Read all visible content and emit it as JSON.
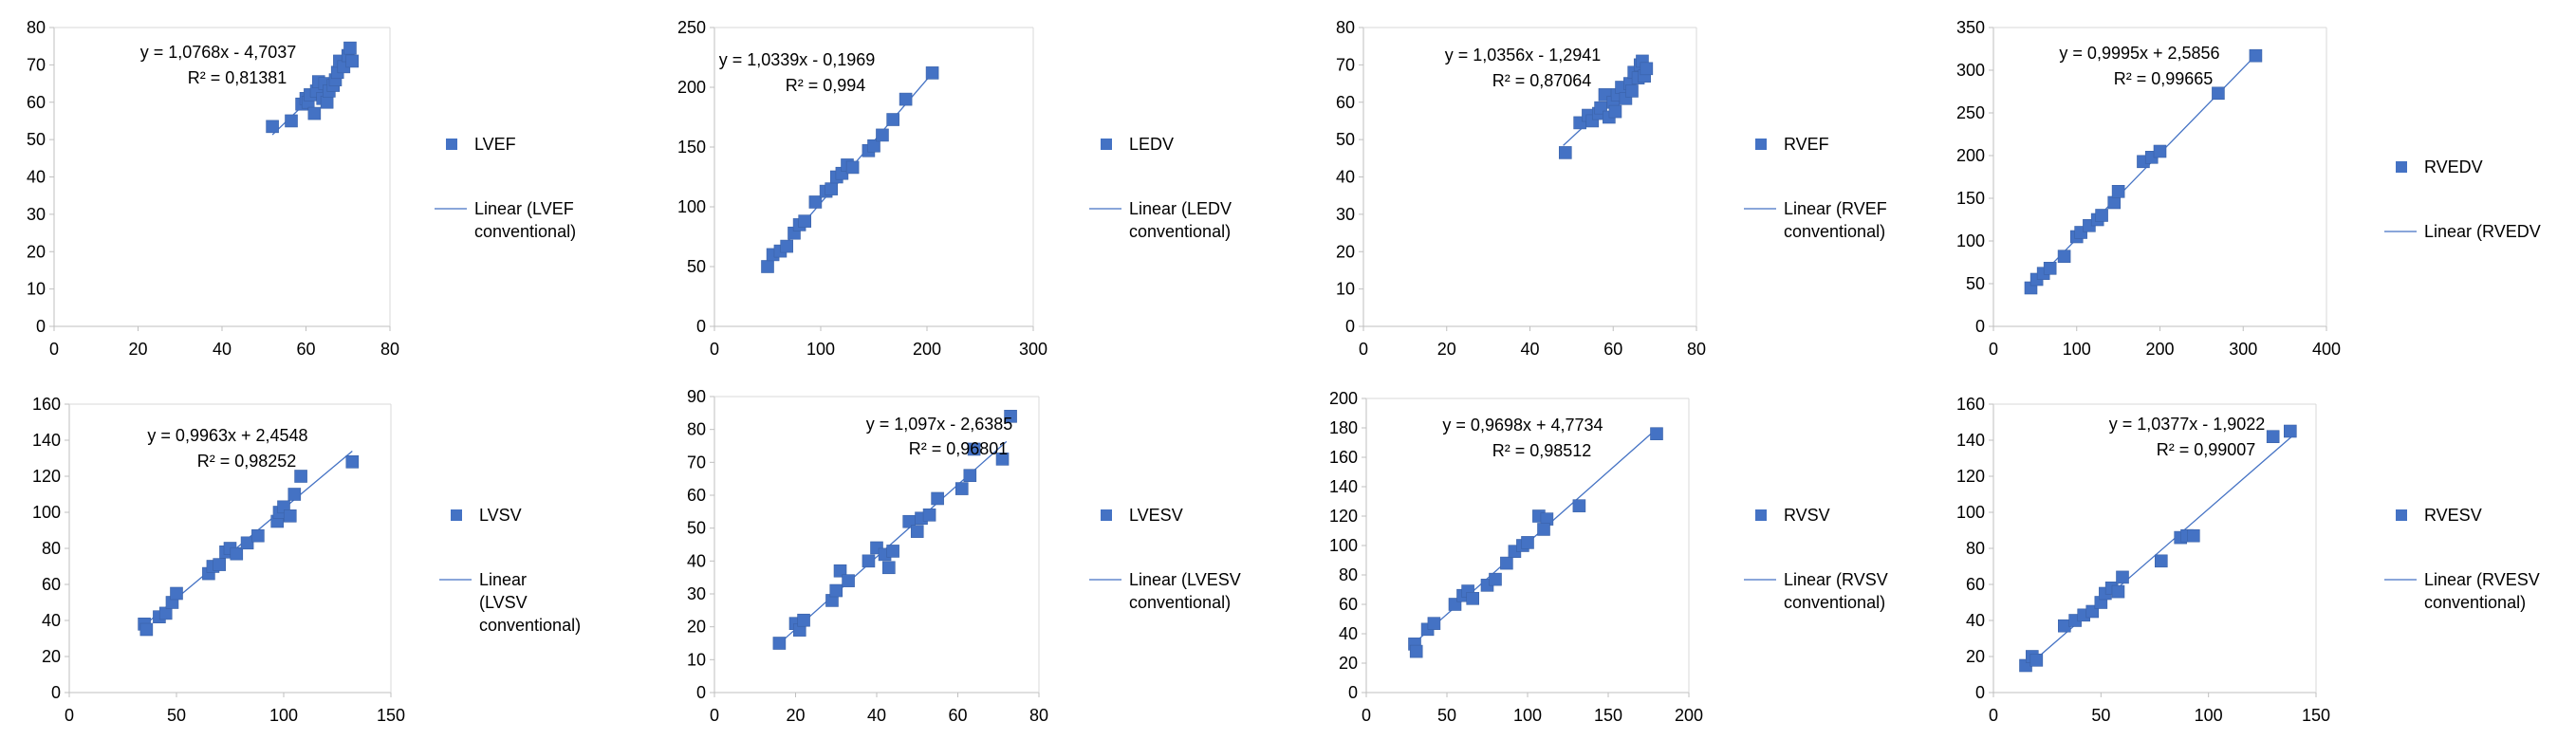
{
  "colors": {
    "marker": "#4472C4",
    "trendline": "#4472C4",
    "axis": "#bfbfbf",
    "text": "#000000"
  },
  "chart_data": [
    {
      "type": "scatter",
      "xlim": [
        0,
        80
      ],
      "ylim": [
        0,
        80
      ],
      "xticks": [
        0,
        20,
        40,
        60,
        80
      ],
      "yticks": [
        0,
        10,
        20,
        30,
        40,
        50,
        60,
        70,
        80
      ],
      "equation": "y = 1,0768x - 4,7037",
      "r2": "R² = 0,81381",
      "legend": {
        "series": "LVEF",
        "trend_1": "Linear  (LVEF",
        "trend_2": "conventional)"
      },
      "trend": {
        "slope": 1.0768,
        "intercept": -4.7037,
        "x_range": [
          52,
          71
        ]
      },
      "points": [
        [
          52,
          53.5
        ],
        [
          56.5,
          55
        ],
        [
          59,
          59.5
        ],
        [
          60,
          61
        ],
        [
          60.5,
          60
        ],
        [
          61,
          62
        ],
        [
          62,
          57
        ],
        [
          62.5,
          63
        ],
        [
          63,
          65.5
        ],
        [
          64,
          61
        ],
        [
          64.5,
          65
        ],
        [
          65,
          60
        ],
        [
          65.5,
          63
        ],
        [
          66.5,
          64.5
        ],
        [
          67,
          66
        ],
        [
          67.5,
          68
        ],
        [
          68,
          71
        ],
        [
          69,
          69.5
        ],
        [
          70,
          72.5
        ],
        [
          70.5,
          74.5
        ],
        [
          71,
          71
        ]
      ]
    },
    {
      "type": "scatter",
      "xlim": [
        0,
        300
      ],
      "ylim": [
        0,
        250
      ],
      "xticks": [
        0,
        100,
        200,
        300
      ],
      "yticks": [
        0,
        50,
        100,
        150,
        200,
        250
      ],
      "equation": "y = 1,0339x - 0,1969",
      "r2": "R² = 0,994",
      "legend": {
        "series": "LEDV",
        "trend_1": "Linear  (LEDV",
        "trend_2": "conventional)"
      },
      "trend": {
        "slope": 1.0339,
        "intercept": -0.1969,
        "x_range": [
          50,
          205
        ]
      },
      "points": [
        [
          50,
          50
        ],
        [
          55,
          60
        ],
        [
          62,
          63
        ],
        [
          68,
          67
        ],
        [
          75,
          78
        ],
        [
          80,
          85
        ],
        [
          85,
          88
        ],
        [
          95,
          104
        ],
        [
          105,
          113
        ],
        [
          110,
          115
        ],
        [
          115,
          125
        ],
        [
          120,
          128
        ],
        [
          125,
          135
        ],
        [
          130,
          133
        ],
        [
          145,
          147
        ],
        [
          150,
          151
        ],
        [
          158,
          160
        ],
        [
          168,
          173
        ],
        [
          180,
          190
        ],
        [
          205,
          212
        ]
      ]
    },
    {
      "type": "scatter",
      "xlim": [
        0,
        80
      ],
      "ylim": [
        0,
        80
      ],
      "xticks": [
        0,
        20,
        40,
        60,
        80
      ],
      "yticks": [
        0,
        10,
        20,
        30,
        40,
        50,
        60,
        70,
        80
      ],
      "equation": "y = 1,0356x - 1,2941",
      "r2": "R² = 0,87064",
      "legend": {
        "series": "RVEF",
        "trend_1": "Linear  (RVEF",
        "trend_2": "conventional)"
      },
      "trend": {
        "slope": 1.0356,
        "intercept": -1.2941,
        "x_range": [
          48,
          68
        ]
      },
      "points": [
        [
          48.5,
          46.5
        ],
        [
          52,
          54.5
        ],
        [
          54,
          56.5
        ],
        [
          55,
          55
        ],
        [
          56.5,
          57
        ],
        [
          57,
          58.5
        ],
        [
          58,
          62
        ],
        [
          59,
          56
        ],
        [
          60,
          60
        ],
        [
          60.5,
          57.5
        ],
        [
          61,
          62
        ],
        [
          62,
          64
        ],
        [
          63,
          61
        ],
        [
          64,
          65
        ],
        [
          64.5,
          63
        ],
        [
          65,
          68
        ],
        [
          66,
          66.5
        ],
        [
          66.5,
          70
        ],
        [
          67,
          71
        ],
        [
          67.5,
          67
        ],
        [
          68,
          69
        ]
      ]
    },
    {
      "type": "scatter",
      "xlim": [
        0,
        400
      ],
      "ylim": [
        0,
        350
      ],
      "xticks": [
        0,
        100,
        200,
        300,
        400
      ],
      "yticks": [
        0,
        50,
        100,
        150,
        200,
        250,
        300,
        350
      ],
      "equation": "y = 0,9995x + 2,5856",
      "r2": "R² = 0,99665",
      "legend": {
        "series": "RVEDV",
        "trend_1": "Linear  (RVEDV",
        "trend_2": ""
      },
      "trend": {
        "slope": 0.9995,
        "intercept": 2.5856,
        "x_range": [
          45,
          315
        ]
      },
      "points": [
        [
          45,
          45
        ],
        [
          52,
          55
        ],
        [
          60,
          62
        ],
        [
          68,
          68
        ],
        [
          85,
          82
        ],
        [
          100,
          105
        ],
        [
          105,
          110
        ],
        [
          115,
          118
        ],
        [
          125,
          125
        ],
        [
          130,
          130
        ],
        [
          145,
          145
        ],
        [
          150,
          158
        ],
        [
          180,
          193
        ],
        [
          190,
          198
        ],
        [
          200,
          205
        ],
        [
          270,
          273
        ],
        [
          315,
          317
        ]
      ]
    },
    {
      "type": "scatter",
      "xlim": [
        0,
        150
      ],
      "ylim": [
        0,
        160
      ],
      "xticks": [
        0,
        50,
        100,
        150
      ],
      "yticks": [
        0,
        20,
        40,
        60,
        80,
        100,
        120,
        140,
        160
      ],
      "equation": "y = 0,9963x + 2,4548",
      "r2": "R² = 0,98252",
      "legend": {
        "series": "LVSV",
        "trend_1": "Linear",
        "trend_2": "(LVSV",
        "trend_3": "conventional)"
      },
      "trend": {
        "slope": 0.9963,
        "intercept": 2.4548,
        "x_range": [
          35,
          132
        ]
      },
      "points": [
        [
          35,
          38
        ],
        [
          36,
          35
        ],
        [
          42,
          42
        ],
        [
          45,
          44
        ],
        [
          48,
          50
        ],
        [
          50,
          55
        ],
        [
          65,
          66
        ],
        [
          67,
          70
        ],
        [
          70,
          71
        ],
        [
          73,
          78
        ],
        [
          75,
          80
        ],
        [
          78,
          77
        ],
        [
          83,
          83
        ],
        [
          88,
          87
        ],
        [
          97,
          95
        ],
        [
          98,
          100
        ],
        [
          100,
          103
        ],
        [
          103,
          98
        ],
        [
          105,
          110
        ],
        [
          108,
          120
        ],
        [
          132,
          128
        ]
      ]
    },
    {
      "type": "scatter",
      "xlim": [
        0,
        80
      ],
      "ylim": [
        0,
        90
      ],
      "xticks": [
        0,
        20,
        40,
        60,
        80
      ],
      "yticks": [
        0,
        10,
        20,
        30,
        40,
        50,
        60,
        70,
        80,
        90
      ],
      "equation": "y = 1,097x - 2,6385",
      "r2": "R² = 0,96801",
      "legend": {
        "series": "LVESV",
        "trend_1": "Linear  (LVESV",
        "trend_2": "conventional)"
      },
      "trend": {
        "slope": 1.097,
        "intercept": -2.6385,
        "x_range": [
          16,
          72
        ]
      },
      "points": [
        [
          16,
          15
        ],
        [
          20,
          21
        ],
        [
          21,
          19
        ],
        [
          22,
          22
        ],
        [
          29,
          28
        ],
        [
          30,
          31
        ],
        [
          31,
          37
        ],
        [
          33,
          34
        ],
        [
          38,
          40
        ],
        [
          40,
          44
        ],
        [
          42,
          42
        ],
        [
          43,
          38
        ],
        [
          44,
          43
        ],
        [
          48,
          52
        ],
        [
          50,
          49
        ],
        [
          51,
          53
        ],
        [
          53,
          54
        ],
        [
          55,
          59
        ],
        [
          61,
          62
        ],
        [
          63,
          66
        ],
        [
          64,
          74
        ],
        [
          71,
          71
        ],
        [
          73,
          84
        ]
      ]
    },
    {
      "type": "scatter",
      "xlim": [
        0,
        200
      ],
      "ylim": [
        0,
        200
      ],
      "xticks": [
        0,
        50,
        100,
        150,
        200
      ],
      "yticks": [
        0,
        20,
        40,
        60,
        80,
        100,
        120,
        140,
        160,
        180,
        200
      ],
      "equation": "y = 0,9698x + 4,7734",
      "r2": "R² = 0,98512",
      "legend": {
        "series": "RVSV",
        "trend_1": "Linear  (RVSV",
        "trend_2": "conventional)"
      },
      "trend": {
        "slope": 0.9698,
        "intercept": 4.7734,
        "x_range": [
          30,
          180
        ]
      },
      "points": [
        [
          30,
          33
        ],
        [
          31,
          28
        ],
        [
          38,
          43
        ],
        [
          42,
          47
        ],
        [
          55,
          60
        ],
        [
          60,
          66
        ],
        [
          63,
          69
        ],
        [
          66,
          64
        ],
        [
          75,
          73
        ],
        [
          80,
          77
        ],
        [
          87,
          88
        ],
        [
          92,
          96
        ],
        [
          97,
          100
        ],
        [
          100,
          102
        ],
        [
          107,
          120
        ],
        [
          112,
          118
        ],
        [
          110,
          111
        ],
        [
          132,
          127
        ],
        [
          180,
          176
        ]
      ]
    },
    {
      "type": "scatter",
      "xlim": [
        0,
        150
      ],
      "ylim": [
        0,
        160
      ],
      "xticks": [
        0,
        50,
        100,
        150
      ],
      "yticks": [
        0,
        20,
        40,
        60,
        80,
        100,
        120,
        140,
        160
      ],
      "equation": "y = 1,0377x - 1,9022",
      "r2": "R² = 0,99007",
      "legend": {
        "series": "RVESV",
        "trend_1": "Linear  (RVESV",
        "trend_2": "conventional)"
      },
      "trend": {
        "slope": 1.0377,
        "intercept": -1.9022,
        "x_range": [
          15,
          140
        ]
      },
      "points": [
        [
          15,
          15
        ],
        [
          18,
          20
        ],
        [
          20,
          18
        ],
        [
          33,
          37
        ],
        [
          38,
          40
        ],
        [
          42,
          43
        ],
        [
          46,
          45
        ],
        [
          50,
          50
        ],
        [
          52,
          55
        ],
        [
          55,
          58
        ],
        [
          58,
          56
        ],
        [
          60,
          64
        ],
        [
          78,
          73
        ],
        [
          87,
          86
        ],
        [
          90,
          87
        ],
        [
          93,
          87
        ],
        [
          130,
          142
        ],
        [
          138,
          145
        ]
      ]
    }
  ]
}
